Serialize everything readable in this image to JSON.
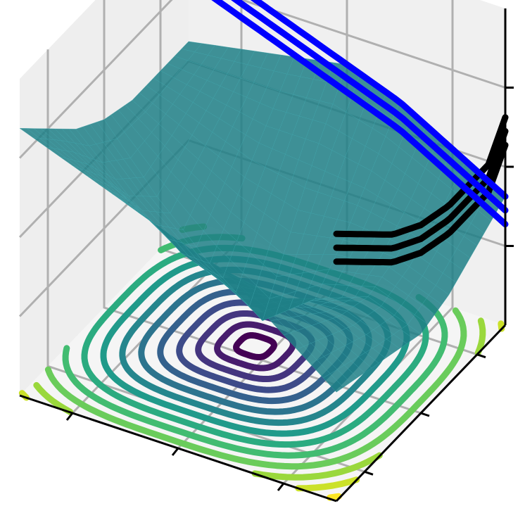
{
  "chart_data": {
    "type": "surface3d",
    "title": "",
    "xlabel": "",
    "ylabel": "",
    "zlabel": "",
    "tick_labels_shown": false,
    "grid": true,
    "pane_color": "#f0f0f0",
    "grid_color": "#b0b0b0",
    "surface": {
      "color": "#1f7f86",
      "alpha": 0.85,
      "x": [
        -3.0,
        -2.0,
        -1.0,
        0.0,
        1.0,
        2.0,
        3.0
      ],
      "y": [
        -3.0,
        -2.0,
        -1.0,
        0.0,
        1.0,
        2.0,
        3.0
      ],
      "z": [
        [
          0.35,
          0.55,
          0.75,
          0.85,
          0.95,
          1.05,
          1.15
        ],
        [
          0.3,
          0.45,
          0.55,
          0.6,
          0.7,
          0.85,
          1.0
        ],
        [
          0.25,
          0.35,
          0.35,
          0.3,
          0.4,
          0.6,
          0.85
        ],
        [
          0.2,
          0.3,
          0.2,
          0.0,
          0.2,
          0.45,
          0.75
        ],
        [
          0.25,
          0.35,
          0.35,
          0.3,
          0.4,
          0.55,
          0.7
        ],
        [
          0.35,
          0.45,
          0.55,
          0.6,
          0.6,
          0.65,
          0.7
        ],
        [
          0.45,
          0.6,
          0.75,
          0.85,
          0.8,
          0.75,
          0.7
        ]
      ]
    },
    "floor_contour": {
      "colormap": "viridis",
      "center": [
        0.3,
        0.3
      ],
      "levels": [
        0.1,
        0.2,
        0.3,
        0.4,
        0.5,
        0.6,
        0.7,
        0.8,
        0.9,
        1.0,
        1.1,
        1.2,
        1.3,
        1.4
      ]
    },
    "wall_contours": [
      {
        "plane": "x",
        "color": "#000000",
        "count": 3
      },
      {
        "plane": "y",
        "color": "#0000ff",
        "count": 3
      }
    ]
  },
  "colors": {
    "surface": "#1f7f86",
    "pane": "#f0f0f0",
    "grid": "#b0b0b0",
    "axis": "#000000"
  }
}
